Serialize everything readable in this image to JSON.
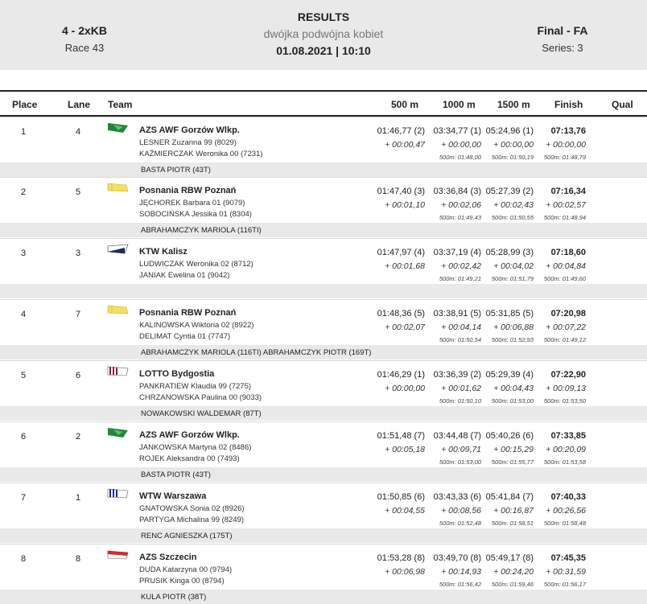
{
  "header": {
    "event": "4 - 2xKB",
    "race": "Race 43",
    "title": "RESULTS",
    "subtitle": "dwójka podwójna kobiet",
    "datetime": "01.08.2021 | 10:10",
    "phase": "Final - FA",
    "series": "Series: 3"
  },
  "columns": [
    "Place",
    "Lane",
    "Team",
    "500 m",
    "1000 m",
    "1500 m",
    "Finish",
    "Qual"
  ],
  "rows": [
    {
      "place": "1",
      "lane": "4",
      "team": "AZS AWF Gorzów Wlkp.",
      "flag": "green",
      "rower1": "LESNER  Zuzanna 99 (8029)",
      "rower2": "KAŹMIERCZAK  Weronika 00 (7231)",
      "t500": "01:46,77 (2)",
      "d500": "+ 00:00,47",
      "t1000": "03:34,77 (1)",
      "d1000": "+ 00:00,00",
      "s1000": "500m: 01:48,00",
      "t1500": "05:24,96 (1)",
      "d1500": "+ 00:00,00",
      "s1500": "500m: 01:50,19",
      "tfin": "07:13,76",
      "dfin": "+ 00:00,00",
      "sfin": "500m: 01:48,79",
      "coach": "BASTA PIOTR (43T)"
    },
    {
      "place": "2",
      "lane": "5",
      "team": "Posnania RBW Poznań",
      "flag": "yellow",
      "rower1": "JĘCHOREK  Barbara 01 (9079)",
      "rower2": "SOBOCIŃSKA  Jessika 01 (8304)",
      "t500": "01:47,40 (3)",
      "d500": "+ 00:01,10",
      "t1000": "03:36,84 (3)",
      "d1000": "+ 00:02,06",
      "s1000": "500m: 01:49,43",
      "t1500": "05:27,39 (2)",
      "d1500": "+ 00:02,43",
      "s1500": "500m: 01:50,55",
      "tfin": "07:16,34",
      "dfin": "+ 00:02,57",
      "sfin": "500m: 01:48,94",
      "coach": "ABRAHAMCZYK MARIOLA (116TI)"
    },
    {
      "place": "3",
      "lane": "3",
      "team": "KTW Kalisz",
      "flag": "navy",
      "rower1": "LUDWICZAK  Weronika 02 (8712)",
      "rower2": "JANIAK  Ewelina 01 (9042)",
      "t500": "01:47,97 (4)",
      "d500": "+ 00:01,68",
      "t1000": "03:37,19 (4)",
      "d1000": "+ 00:02,42",
      "s1000": "500m: 01:49,21",
      "t1500": "05:28,99 (3)",
      "d1500": "+ 00:04,02",
      "s1500": "500m: 01:51,79",
      "tfin": "07:18,60",
      "dfin": "+ 00:04,84",
      "sfin": "500m: 01:49,60",
      "coach": ""
    },
    {
      "place": "4",
      "lane": "7",
      "team": "Posnania RBW Poznań",
      "flag": "yellow",
      "rower1": "KALINOWSKA  Wiktoria 02 (8922)",
      "rower2": "DELIMAT  Cyntia 01 (7747)",
      "t500": "01:48,36 (5)",
      "d500": "+ 00:02,07",
      "t1000": "03:38,91 (5)",
      "d1000": "+ 00:04,14",
      "s1000": "500m: 01:50,54",
      "t1500": "05:31,85 (5)",
      "d1500": "+ 00:06,88",
      "s1500": "500m: 01:52,93",
      "tfin": "07:20,98",
      "dfin": "+ 00:07,22",
      "sfin": "500m: 01:49,12",
      "coach": "ABRAHAMCZYK MARIOLA (116TI) ABRAHAMCZYK PIOTR (169T)"
    },
    {
      "place": "5",
      "lane": "6",
      "team": "LOTTO Bydgostia",
      "flag": "stripes-red",
      "rower1": "PANKRATIEW  Klaudia 99 (7275)",
      "rower2": "CHRZANOWSKA  Paulina 00 (9033)",
      "t500": "01:46,29 (1)",
      "d500": "+ 00:00,00",
      "t1000": "03:36,39 (2)",
      "d1000": "+ 00:01,62",
      "s1000": "500m: 01:50,10",
      "t1500": "05:29,39 (4)",
      "d1500": "+ 00:04,43",
      "s1500": "500m: 01:53,00",
      "tfin": "07:22,90",
      "dfin": "+ 00:09,13",
      "sfin": "500m: 01:53,50",
      "coach": "NOWAKOWSKI WALDEMAR (87T)"
    },
    {
      "place": "6",
      "lane": "2",
      "team": "AZS AWF Gorzów Wlkp.",
      "flag": "green",
      "rower1": "JANKOWSKA  Martyna 02 (8486)",
      "rower2": "ROJEK  Aleksandra 00 (7493)",
      "t500": "01:51,48 (7)",
      "d500": "+ 00:05,18",
      "t1000": "03:44,48 (7)",
      "d1000": "+ 00:09,71",
      "s1000": "500m: 01:53,00",
      "t1500": "05:40,26 (6)",
      "d1500": "+ 00:15,29",
      "s1500": "500m: 01:55,77",
      "tfin": "07:33,85",
      "dfin": "+ 00:20,09",
      "sfin": "500m: 01:53,58",
      "coach": "BASTA PIOTR (43T)"
    },
    {
      "place": "7",
      "lane": "1",
      "team": "WTW Warszawa",
      "flag": "stripes-blue",
      "rower1": "GNATOWSKA  Sonia 02 (8926)",
      "rower2": "PARTYGA  Michalina 99 (8249)",
      "t500": "01:50,85 (6)",
      "d500": "+ 00:04,55",
      "t1000": "03:43,33 (6)",
      "d1000": "+ 00:08,56",
      "s1000": "500m: 01:52,48",
      "t1500": "05:41,84 (7)",
      "d1500": "+ 00:16,87",
      "s1500": "500m: 01:58,51",
      "tfin": "07:40,33",
      "dfin": "+ 00:26,56",
      "sfin": "500m: 01:58,48",
      "coach": "RENC AGNIESZKA (175T)"
    },
    {
      "place": "8",
      "lane": "8",
      "team": "AZS Szczecin",
      "flag": "red-white",
      "rower1": "DUDA  Katarzyna 00 (9794)",
      "rower2": "PRUSIK  Kinga 00 (8794)",
      "t500": "01:53,28 (8)",
      "d500": "+ 00:06,98",
      "t1000": "03:49,70 (8)",
      "d1000": "+ 00:14,93",
      "s1000": "500m: 01:56,42",
      "t1500": "05:49,17 (8)",
      "d1500": "+ 00:24,20",
      "s1500": "500m: 01:59,46",
      "tfin": "07:45,35",
      "dfin": "+ 00:31,59",
      "sfin": "500m: 01:56,17",
      "coach": "KULA PIOTR (38T)"
    }
  ]
}
